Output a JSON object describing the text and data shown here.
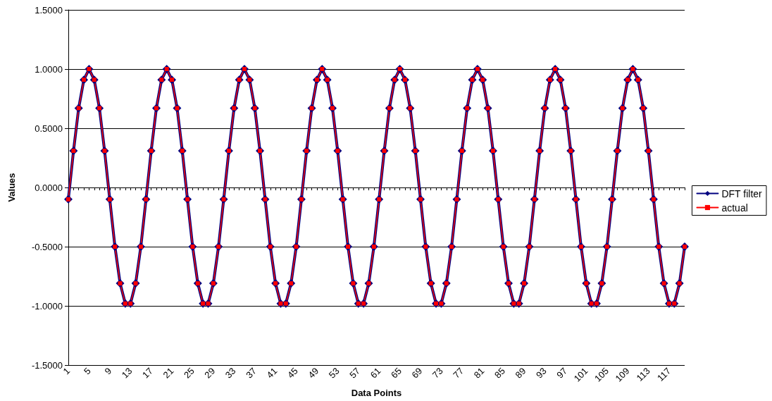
{
  "chart_data": {
    "type": "line",
    "xlabel": "Data Points",
    "ylabel": "Values",
    "categories": [
      "1",
      null,
      null,
      null,
      "5",
      null,
      null,
      null,
      "9",
      null,
      null,
      null,
      "13",
      null,
      null,
      null,
      "17",
      null,
      null,
      null,
      "21",
      null,
      null,
      null,
      "25",
      null,
      null,
      null,
      "29",
      null,
      null,
      null,
      "33",
      null,
      null,
      null,
      "37",
      null,
      null,
      null,
      "41",
      null,
      null,
      null,
      "45",
      null,
      null,
      null,
      "49",
      null,
      null,
      null,
      "53",
      null,
      null,
      null,
      "57",
      null,
      null,
      null,
      "61",
      null,
      null,
      null,
      "65",
      null,
      null,
      null,
      "69",
      null,
      null,
      null,
      "73",
      null,
      null,
      null,
      "77",
      null,
      null,
      null,
      "81",
      null,
      null,
      null,
      "85",
      null,
      null,
      null,
      "89",
      null,
      null,
      null,
      "93",
      null,
      null,
      null,
      "97",
      null,
      null,
      null,
      "101",
      null,
      null,
      null,
      "105",
      null,
      null,
      null,
      "109",
      null,
      null,
      null,
      "113",
      null,
      null,
      null,
      "117",
      null,
      null,
      null
    ],
    "series": [
      {
        "name": "DFT filter",
        "color": "#000080",
        "marker": "diamond",
        "values": [
          -0.1,
          0.31,
          0.67,
          0.91,
          1.0,
          0.91,
          0.67,
          0.31,
          -0.1,
          -0.5,
          -0.81,
          -0.98,
          -0.98,
          -0.81,
          -0.5,
          -0.1,
          0.31,
          0.67,
          0.91,
          1.0,
          0.91,
          0.67,
          0.31,
          -0.1,
          -0.5,
          -0.81,
          -0.98,
          -0.98,
          -0.81,
          -0.5,
          -0.1,
          0.31,
          0.67,
          0.91,
          1.0,
          0.91,
          0.67,
          0.31,
          -0.1,
          -0.5,
          -0.81,
          -0.98,
          -0.98,
          -0.81,
          -0.5,
          -0.1,
          0.31,
          0.67,
          0.91,
          1.0,
          0.91,
          0.67,
          0.31,
          -0.1,
          -0.5,
          -0.81,
          -0.98,
          -0.98,
          -0.81,
          -0.5,
          -0.1,
          0.31,
          0.67,
          0.91,
          1.0,
          0.91,
          0.67,
          0.31,
          -0.1,
          -0.5,
          -0.81,
          -0.98,
          -0.98,
          -0.81,
          -0.5,
          -0.1,
          0.31,
          0.67,
          0.91,
          1.0,
          0.91,
          0.67,
          0.31,
          -0.1,
          -0.5,
          -0.81,
          -0.98,
          -0.98,
          -0.81,
          -0.5,
          -0.1,
          0.31,
          0.67,
          0.91,
          1.0,
          0.91,
          0.67,
          0.31,
          -0.1,
          -0.5,
          -0.81,
          -0.98,
          -0.98,
          -0.81,
          -0.5,
          -0.1,
          0.31,
          0.67,
          0.91,
          1.0,
          0.91,
          0.67,
          0.31,
          -0.1,
          -0.5,
          -0.81,
          -0.98,
          -0.98,
          -0.81,
          -0.5
        ]
      },
      {
        "name": "actual",
        "color": "#ff0000",
        "marker": "square",
        "values": [
          -0.1,
          0.31,
          0.67,
          0.91,
          1.0,
          0.91,
          0.67,
          0.31,
          -0.1,
          -0.5,
          -0.81,
          -0.98,
          -0.98,
          -0.81,
          -0.5,
          -0.1,
          0.31,
          0.67,
          0.91,
          1.0,
          0.91,
          0.67,
          0.31,
          -0.1,
          -0.5,
          -0.81,
          -0.98,
          -0.98,
          -0.81,
          -0.5,
          -0.1,
          0.31,
          0.67,
          0.91,
          1.0,
          0.91,
          0.67,
          0.31,
          -0.1,
          -0.5,
          -0.81,
          -0.98,
          -0.98,
          -0.81,
          -0.5,
          -0.1,
          0.31,
          0.67,
          0.91,
          1.0,
          0.91,
          0.67,
          0.31,
          -0.1,
          -0.5,
          -0.81,
          -0.98,
          -0.98,
          -0.81,
          -0.5,
          -0.1,
          0.31,
          0.67,
          0.91,
          1.0,
          0.91,
          0.67,
          0.31,
          -0.1,
          -0.5,
          -0.81,
          -0.98,
          -0.98,
          -0.81,
          -0.5,
          -0.1,
          0.31,
          0.67,
          0.91,
          1.0,
          0.91,
          0.67,
          0.31,
          -0.1,
          -0.5,
          -0.81,
          -0.98,
          -0.98,
          -0.81,
          -0.5,
          -0.1,
          0.31,
          0.67,
          0.91,
          1.0,
          0.91,
          0.67,
          0.31,
          -0.1,
          -0.5,
          -0.81,
          -0.98,
          -0.98,
          -0.81,
          -0.5,
          -0.1,
          0.31,
          0.67,
          0.91,
          1.0,
          0.91,
          0.67,
          0.31,
          -0.1,
          -0.5,
          -0.81,
          -0.98,
          -0.98,
          -0.81,
          -0.5
        ]
      }
    ],
    "ylim": [
      -1.5,
      1.5
    ],
    "yticks": [
      {
        "value": -1.5,
        "label": "-1.5000"
      },
      {
        "value": -1,
        "label": "-1.0000"
      },
      {
        "value": -0.5,
        "label": "-0.5000"
      },
      {
        "value": 0,
        "label": "0.0000"
      },
      {
        "value": 0.5,
        "label": "0.5000"
      },
      {
        "value": 1,
        "label": "1.0000"
      },
      {
        "value": 1.5,
        "label": "1.5000"
      }
    ],
    "grid": "y",
    "legend": "right",
    "line_style": "solid"
  }
}
